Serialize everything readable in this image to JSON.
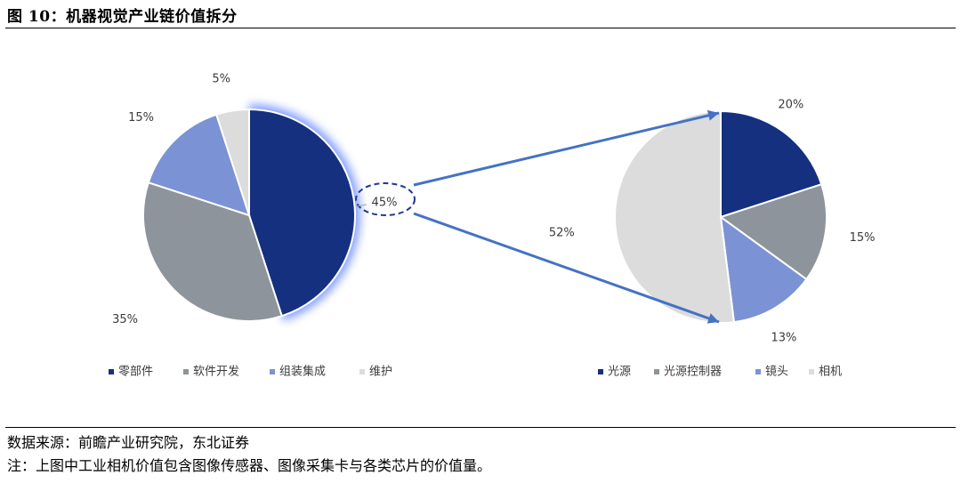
{
  "figure": {
    "title": "图 10：机器视觉产业链价值拆分",
    "source": "数据来源：前瞻产业研究院，东北证券",
    "note": "注：上图中工业相机价值包含图像传感器、图像采集卡与各类芯片的价值量。"
  },
  "chart_data": [
    {
      "type": "pie",
      "labels": [
        "零部件",
        "软件开发",
        "组装集成",
        "维护"
      ],
      "values": [
        45,
        35,
        15,
        5
      ],
      "value_labels": [
        "45%",
        "35%",
        "15%",
        "5%"
      ],
      "colors": [
        "#14307f",
        "#8e949b",
        "#7b93d4",
        "#dcdcdc"
      ],
      "highlighted": "零部件",
      "legend_position": "bottom"
    },
    {
      "type": "pie",
      "labels": [
        "光源",
        "光源控制器",
        "镜头",
        "相机"
      ],
      "values": [
        20,
        15,
        13,
        52
      ],
      "value_labels": [
        "20%",
        "15%",
        "13%",
        "52%"
      ],
      "colors": [
        "#14307f",
        "#8e949b",
        "#7b93d4",
        "#dcdcdc"
      ],
      "breakdown_of": "零部件",
      "legend_position": "bottom"
    }
  ]
}
